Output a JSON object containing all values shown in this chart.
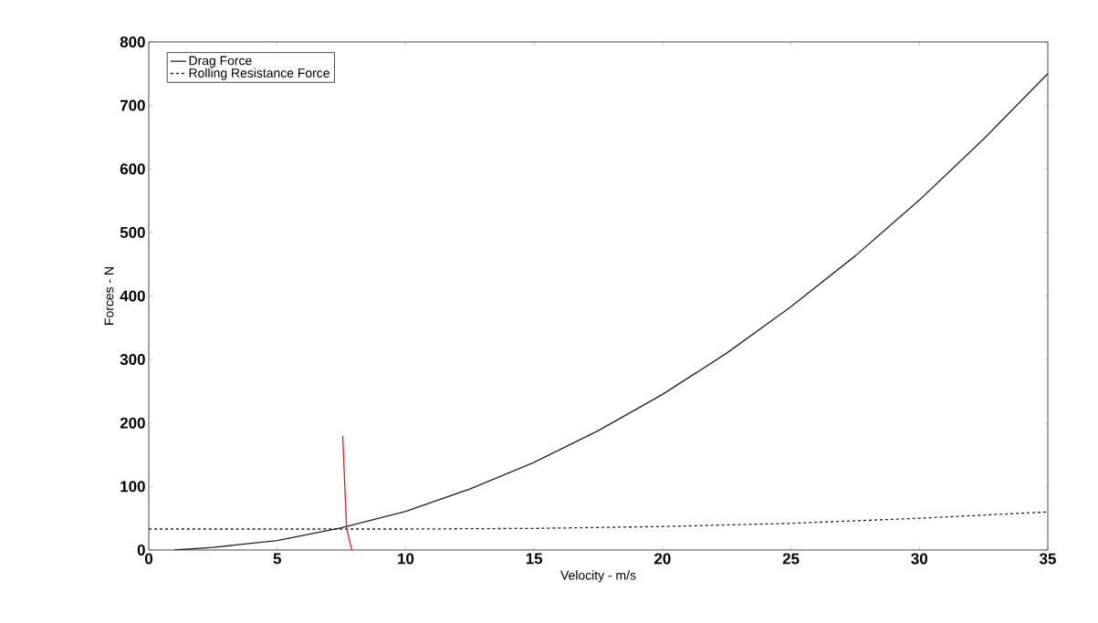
{
  "chart_data": {
    "type": "line",
    "xlabel": "Velocity - m/s",
    "ylabel": "Forces - N",
    "xlim": [
      0,
      35
    ],
    "ylim": [
      0,
      800
    ],
    "xticks": [
      0,
      5,
      10,
      15,
      20,
      25,
      30,
      35
    ],
    "yticks": [
      0,
      100,
      200,
      300,
      400,
      500,
      600,
      700,
      800
    ],
    "grid": false,
    "legend": "top left",
    "series": [
      {
        "name": "Drag Force",
        "color": "#222222",
        "line_style": "solid",
        "x": [
          1,
          2.5,
          5,
          7.5,
          10,
          12.5,
          15,
          17.5,
          20,
          22.5,
          25,
          27.5,
          30,
          32.5,
          35
        ],
        "values": [
          0,
          4,
          15,
          35,
          61,
          96,
          138,
          188,
          245,
          310,
          383,
          463,
          551,
          647,
          750
        ]
      },
      {
        "name": "Rolling Resistance Force",
        "color": "#222222",
        "line_style": "dashed",
        "x": [
          0,
          5,
          10,
          15,
          20,
          25,
          30,
          35
        ],
        "values": [
          33,
          33,
          33,
          34,
          37,
          42,
          50,
          60
        ]
      },
      {
        "color": "#e02020",
        "line_style": "solid",
        "x": [
          7.55,
          7.7,
          7.9
        ],
        "values": [
          180,
          35,
          0
        ]
      }
    ]
  }
}
